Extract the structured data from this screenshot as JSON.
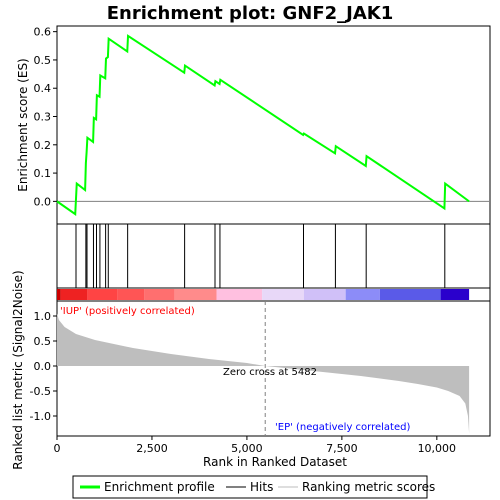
{
  "chart_data": {
    "type": "line",
    "title": "Enrichment plot: GNF2_JAK1",
    "colors": {
      "profile": "#00ff00",
      "hits": "#000000",
      "metric_fill": "#bebebe",
      "zero_cross_line": "#808080",
      "pos_label": "#ff0000",
      "neg_label": "#0000ff"
    },
    "es_panel": {
      "ylabel": "Enrichment score (ES)",
      "ylim": [
        -0.08,
        0.62
      ],
      "yticks": [
        0.0,
        0.1,
        0.2,
        0.3,
        0.4,
        0.5,
        0.6
      ],
      "ytick_labels": [
        "0.0",
        "0.1",
        "0.2",
        "0.3",
        "0.4",
        "0.5",
        "0.6"
      ],
      "grid": false,
      "x": [
        0,
        480,
        520,
        740,
        760,
        780,
        800,
        950,
        970,
        1030,
        1050,
        1120,
        1140,
        1270,
        1290,
        1340,
        1360,
        1850,
        1870,
        3350,
        3370,
        4150,
        4170,
        4280,
        4300,
        6480,
        6500,
        7320,
        7340,
        8130,
        8150,
        10200,
        10220,
        10850
      ],
      "y": [
        0.0,
        -0.045,
        0.063,
        0.04,
        0.135,
        0.175,
        0.225,
        0.21,
        0.295,
        0.29,
        0.375,
        0.37,
        0.445,
        0.435,
        0.505,
        0.51,
        0.575,
        0.53,
        0.585,
        0.455,
        0.48,
        0.41,
        0.425,
        0.415,
        0.43,
        0.235,
        0.24,
        0.17,
        0.195,
        0.125,
        0.16,
        -0.025,
        0.063,
        0.0
      ]
    },
    "hits": [
      500,
      760,
      790,
      960,
      1040,
      1130,
      1280,
      1350,
      1860,
      3360,
      4160,
      4290,
      6490,
      7330,
      8140,
      10210
    ],
    "metric_panel": {
      "ylabel": "Ranked list metric (Signal2Noise)",
      "ylim": [
        -1.4,
        1.3
      ],
      "yticks": [
        1.0,
        0.5,
        0.0,
        -0.5,
        -1.0
      ],
      "ytick_labels": [
        "1.0",
        "0.5",
        "0.0",
        "-0.5",
        "-1.0"
      ],
      "x": [
        0,
        50,
        200,
        500,
        1000,
        2000,
        3000,
        4000,
        5000,
        5482,
        6000,
        7000,
        8000,
        9000,
        9500,
        10000,
        10300,
        10600,
        10750,
        10820,
        10850
      ],
      "y": [
        1.05,
        0.92,
        0.78,
        0.64,
        0.52,
        0.36,
        0.24,
        0.14,
        0.06,
        0.0,
        -0.04,
        -0.12,
        -0.2,
        -0.3,
        -0.36,
        -0.43,
        -0.5,
        -0.6,
        -0.75,
        -1.0,
        -1.35
      ]
    },
    "xlabel": "Rank in Ranked Dataset",
    "xlim": [
      0,
      11400
    ],
    "xticks": [
      0,
      2500,
      5000,
      7500,
      10000
    ],
    "xtick_labels": [
      "0",
      "2,500",
      "5,000",
      "7,500",
      "10,000"
    ],
    "n_genes": 10850,
    "zero_cross": 5482,
    "zero_cross_label": "Zero cross at 5482",
    "pos_label": "'IUP' (positively correlated)",
    "neg_label": "'EP' (negatively correlated)",
    "color_bar": [
      {
        "from": 0,
        "to": 100,
        "color": "#cc0000"
      },
      {
        "from": 100,
        "to": 800,
        "color": "#ee2222"
      },
      {
        "from": 800,
        "to": 1600,
        "color": "#ff4444"
      },
      {
        "from": 1600,
        "to": 2300,
        "color": "#ff5555"
      },
      {
        "from": 2300,
        "to": 3100,
        "color": "#ff6f6f"
      },
      {
        "from": 3100,
        "to": 4200,
        "color": "#ff8b8b"
      },
      {
        "from": 4200,
        "to": 5400,
        "color": "#ffc0e0"
      },
      {
        "from": 5400,
        "to": 6500,
        "color": "#e8d8f8"
      },
      {
        "from": 6500,
        "to": 7600,
        "color": "#d0c0f8"
      },
      {
        "from": 7600,
        "to": 8500,
        "color": "#8c8cf8"
      },
      {
        "from": 8500,
        "to": 10100,
        "color": "#5a5ae8"
      },
      {
        "from": 10100,
        "to": 10850,
        "color": "#2a00cc"
      }
    ],
    "legend": [
      {
        "label": "Enrichment profile",
        "color": "#00ff00",
        "kind": "line"
      },
      {
        "label": "Hits",
        "color": "#000000",
        "kind": "line"
      },
      {
        "label": "Ranking metric scores",
        "color": "#bebebe",
        "kind": "line"
      }
    ]
  }
}
